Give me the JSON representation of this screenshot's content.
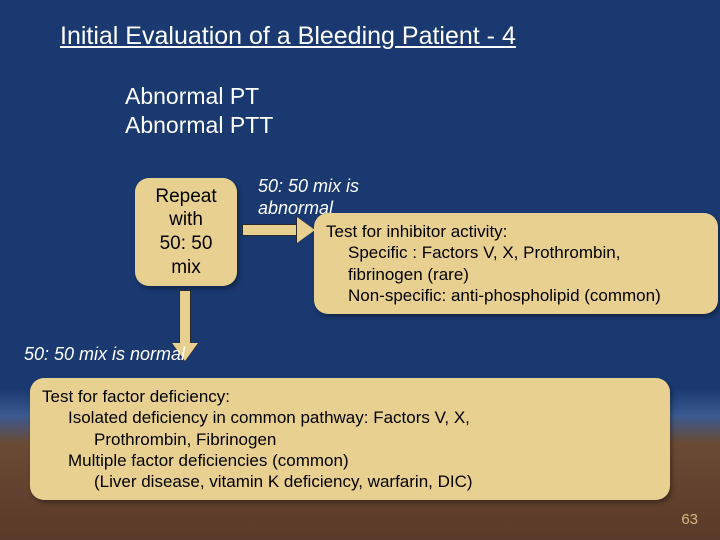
{
  "colors": {
    "bg_top": "#1a3970",
    "bg_mid": "#3a5a90",
    "bg_low1": "#6b4a35",
    "bg_low2": "#5a3a28",
    "box_fill": "#e8d090",
    "box_text": "#000000",
    "text_light": "#ffffff",
    "pagenum": "#d6b97a",
    "arrow_outline": "#2a2a2a"
  },
  "typography": {
    "title_fontsize": 25,
    "header_fontsize": 23,
    "box_fontsize_main": 19,
    "box_fontsize_wide": 17,
    "label_fontsize": 18,
    "pagenum_fontsize": 15
  },
  "title": "Initial Evaluation of a Bleeding Patient - 4",
  "header": {
    "line1": "Abnormal PT",
    "line2": "Abnormal PTT"
  },
  "repeat_box": {
    "l1": "Repeat",
    "l2": "with",
    "l3": "50: 50",
    "l4": "mix"
  },
  "labels": {
    "mix_abnormal_l1": "50: 50 mix is",
    "mix_abnormal_l2": "abnormal",
    "mix_normal": "50: 50 mix is normal"
  },
  "inhibitor": {
    "l1": "Test for inhibitor activity:",
    "l2": "Specific : Factors V, X, Prothrombin,",
    "l3": "fibrinogen (rare)",
    "l4": "Non-specific: anti-phospholipid (common)"
  },
  "deficiency": {
    "l1": "Test for factor deficiency:",
    "l2": "Isolated deficiency in common pathway: Factors V, X,",
    "l3": "Prothrombin, Fibrinogen",
    "l4": "Multiple factor deficiencies (common)",
    "l5": "(Liver disease, vitamin K deficiency, warfarin, DIC)"
  },
  "page_number": "63"
}
